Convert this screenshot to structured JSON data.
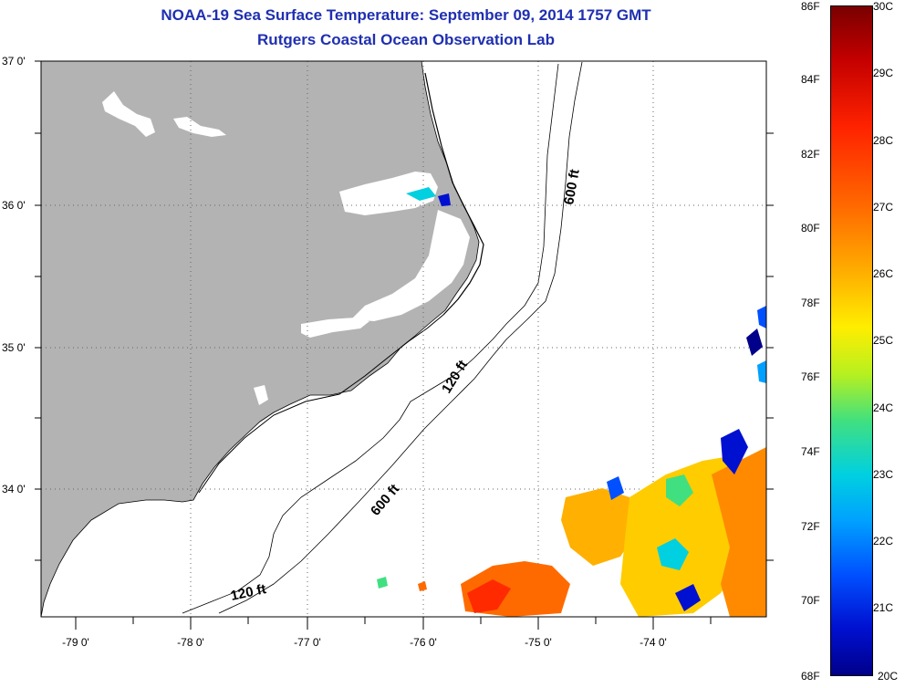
{
  "title": {
    "line1": "NOAA-19 Sea Surface Temperature:  September 09, 2014 1757 GMT",
    "line2": "Rutgers Coastal Ocean Observation Lab"
  },
  "axes": {
    "latitude_labels": [
      "37 0'",
      "36 0'",
      "35 0'",
      "34 0'"
    ],
    "longitude_labels": [
      "-79 0'",
      "-78 0'",
      "-77 0'",
      "-76 0'",
      "-75 0'",
      "-74 0'"
    ]
  },
  "isobaths": {
    "label_600_upper": "600 ft",
    "label_120_mid": "120 ft",
    "label_600_lower": "600 ft",
    "label_120_lower": "120 ft"
  },
  "colorbar": {
    "fahrenheit_labels": [
      "86F",
      "84F",
      "82F",
      "80F",
      "78F",
      "76F",
      "74F",
      "72F",
      "70F",
      "68F"
    ],
    "celsius_labels": [
      "30C",
      "29C",
      "28C",
      "27C",
      "26C",
      "25C",
      "24C",
      "23C",
      "22C",
      "21C",
      "20C"
    ]
  },
  "colors": {
    "title": "#1f2fb0",
    "land": "#b3b3b3",
    "ocean_no_data": "#ffffff"
  }
}
